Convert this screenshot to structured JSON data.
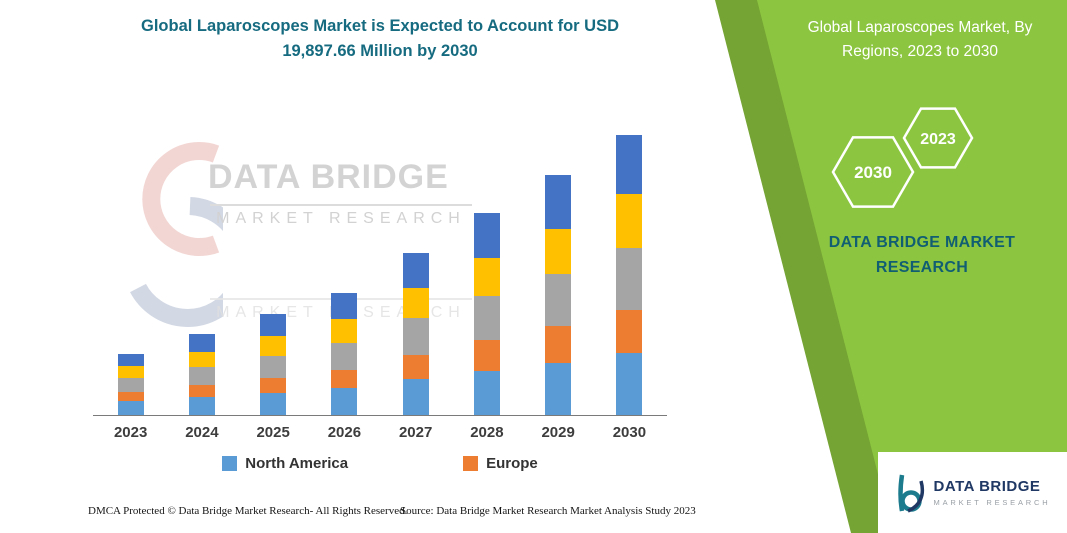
{
  "titles": {
    "main": "Global Laparoscopes Market is Expected to Account for USD 19,897.66 Million by 2030",
    "panel": "Global Laparoscopes Market, By Regions, 2023 to 2030"
  },
  "panel": {
    "hexagon_left": "2030",
    "hexagon_right": "2023",
    "brand": "DATA BRIDGE MARKET RESEARCH"
  },
  "watermark": {
    "line1": "DATA BRIDGE",
    "line2": "MARKET RESEARCH",
    "line3": "MARKET RESEARCH"
  },
  "legend": [
    {
      "label": "North America",
      "color": "#5B9BD5"
    },
    {
      "label": "Europe",
      "color": "#ED7D31"
    }
  ],
  "footer": {
    "left": "DMCA Protected © Data Bridge Market Research-  All Rights Reserved.",
    "right": "Source: Data Bridge Market Research  Market Analysis Study 2023"
  },
  "logo": {
    "name": "DATA BRIDGE",
    "sub": "MARKET RESEARCH"
  },
  "colors": {
    "panel_green": "#8CC640",
    "panel_green_dark": "#75A334",
    "title_teal": "#166b80",
    "brand_teal": "#115e73"
  },
  "chart_data": {
    "type": "bar",
    "stacked": true,
    "title": "Global Laparoscopes Market is Expected to Account for USD 19,897.66 Million by 2030",
    "xlabel": "",
    "ylabel": "",
    "categories": [
      "2023",
      "2024",
      "2025",
      "2026",
      "2027",
      "2028",
      "2029",
      "2030"
    ],
    "series": [
      {
        "name": "North America",
        "color": "#5B9BD5",
        "values": [
          14,
          18,
          22,
          27,
          36,
          44,
          52,
          62
        ]
      },
      {
        "name": "Europe",
        "color": "#ED7D31",
        "values": [
          9,
          12,
          15,
          18,
          24,
          30,
          36,
          42
        ]
      },
      {
        "name": "unlabeled-gray",
        "color": "#A5A5A5",
        "values": [
          14,
          18,
          22,
          27,
          36,
          44,
          52,
          62
        ]
      },
      {
        "name": "unlabeled-yellow",
        "color": "#FFC000",
        "values": [
          12,
          15,
          19,
          23,
          30,
          38,
          45,
          53
        ]
      },
      {
        "name": "unlabeled-blue",
        "color": "#4472C4",
        "values": [
          12,
          17,
          22,
          26,
          35,
          45,
          53,
          59
        ]
      }
    ],
    "legend_entries": [
      "North America",
      "Europe"
    ],
    "legend_position": "bottom",
    "grid": false,
    "note": "Values are relative units estimated from bar heights; no y-axis scale is shown in the image."
  }
}
